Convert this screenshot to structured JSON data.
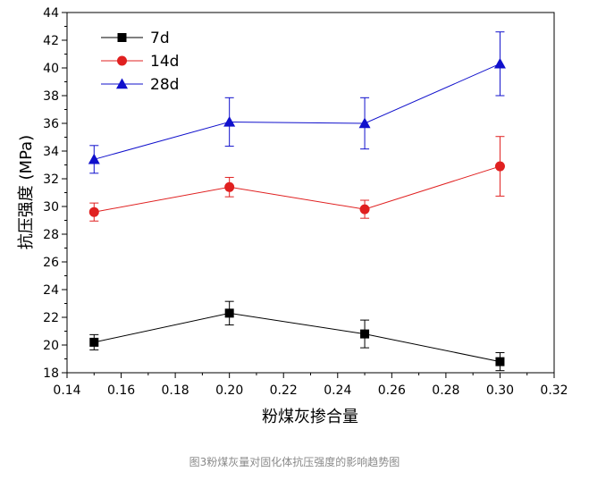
{
  "chart_data": {
    "type": "line",
    "xlabel": "粉煤灰掺合量",
    "ylabel": "抗压强度 (MPa)",
    "xlim": [
      0.14,
      0.32
    ],
    "ylim": [
      18,
      44
    ],
    "xticks": [
      "0.14",
      "0.16",
      "0.18",
      "0.20",
      "0.22",
      "0.24",
      "0.26",
      "0.28",
      "0.30",
      "0.32"
    ],
    "yticks": [
      "18",
      "20",
      "22",
      "24",
      "26",
      "28",
      "30",
      "32",
      "34",
      "36",
      "38",
      "40",
      "42",
      "44"
    ],
    "x": [
      0.15,
      0.2,
      0.25,
      0.3
    ],
    "legend_position": "top-left",
    "series": [
      {
        "name": "7d",
        "color": "#000000",
        "marker": "square",
        "values": [
          20.2,
          22.3,
          20.8,
          18.8
        ],
        "errors": [
          0.55,
          0.85,
          1.0,
          0.65
        ]
      },
      {
        "name": "14d",
        "color": "#e02020",
        "marker": "circle",
        "values": [
          29.6,
          31.4,
          29.8,
          32.9
        ],
        "errors": [
          0.65,
          0.7,
          0.65,
          2.15
        ]
      },
      {
        "name": "28d",
        "color": "#1010cc",
        "marker": "triangle",
        "values": [
          33.4,
          36.1,
          36.0,
          40.3
        ],
        "errors": [
          1.0,
          1.75,
          1.85,
          2.3
        ]
      }
    ]
  },
  "caption": "图3粉煤灰量对固化体抗压强度的影响趋势图"
}
